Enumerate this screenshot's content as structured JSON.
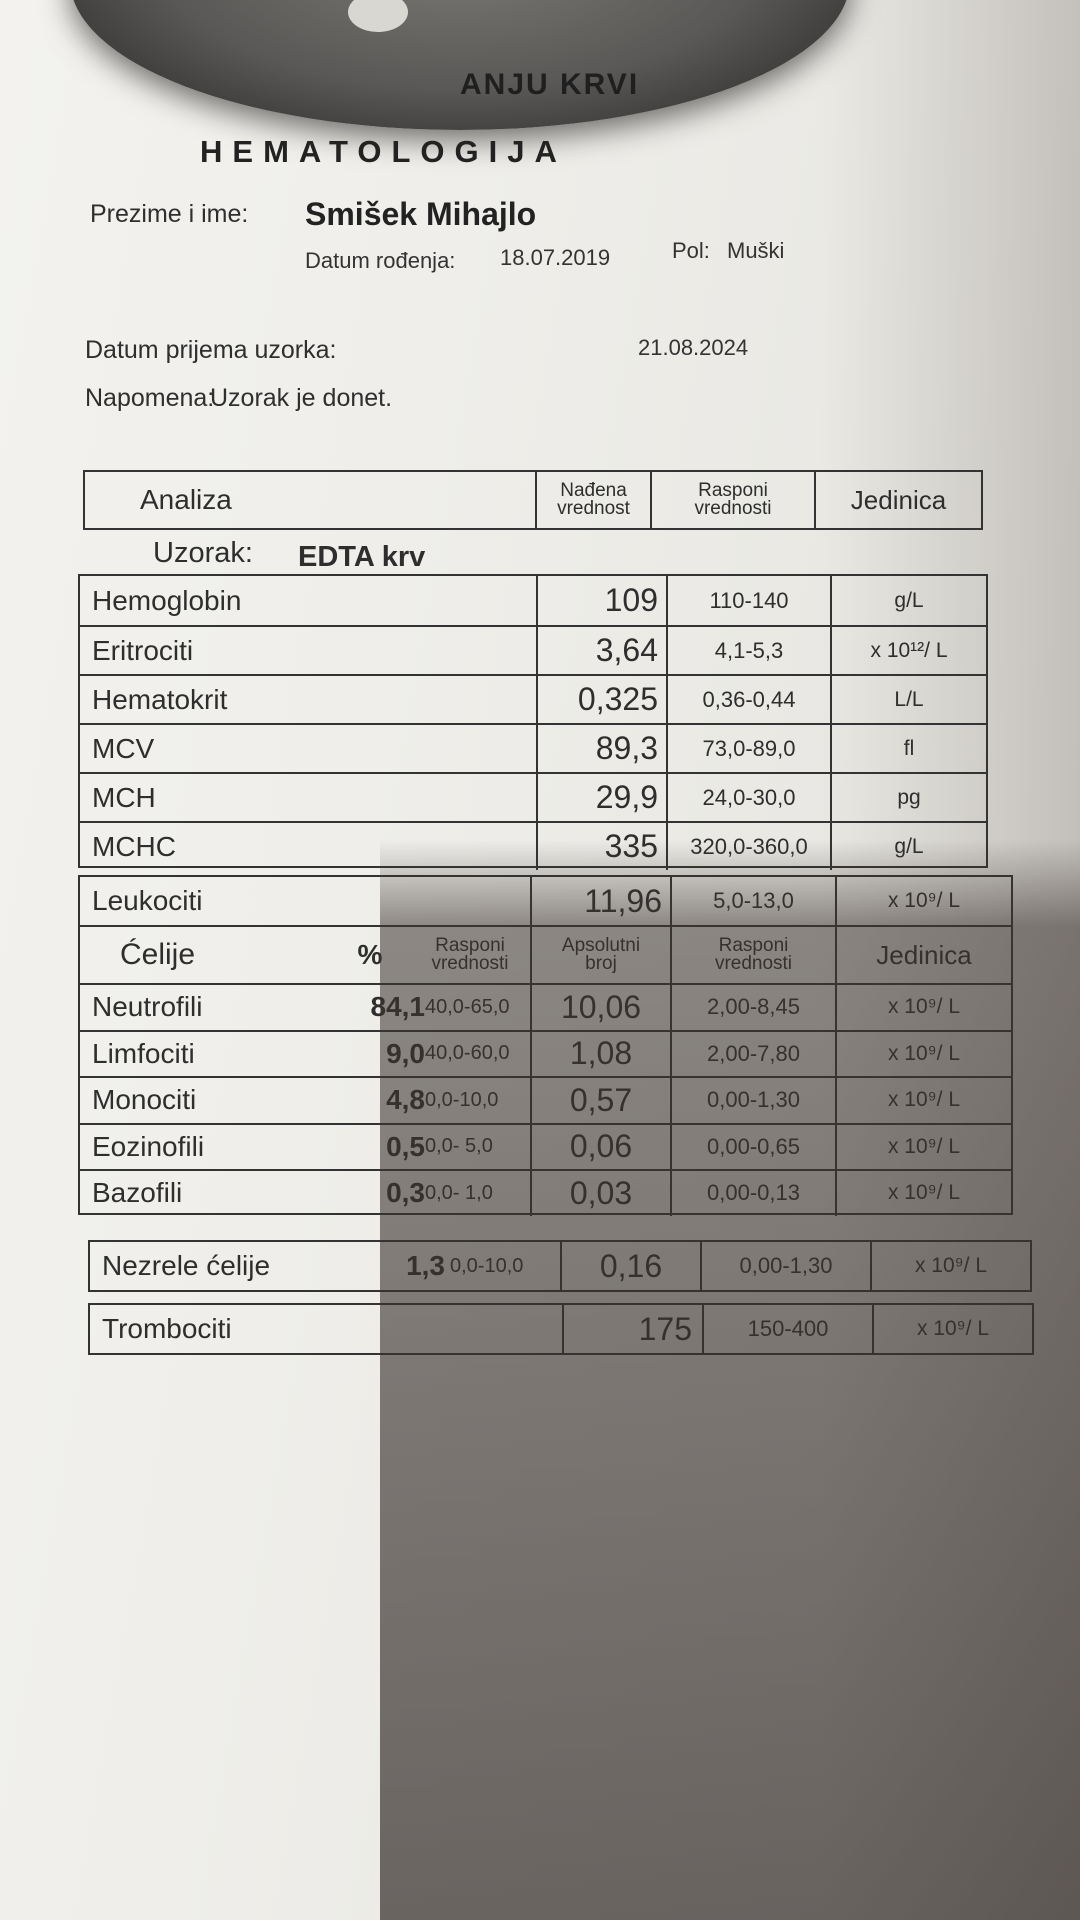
{
  "header": {
    "title_fragment": "ANJU KRVI",
    "subtitle": "HEMATOLOGIJA"
  },
  "patient": {
    "name_label": "Prezime i ime:",
    "name": "Smišek Mihajlo",
    "dob_label": "Datum rođenja:",
    "dob": "18.07.2019",
    "sex_label": "Pol:",
    "sex": "Muški",
    "received_label": "Datum prijema uzorka:",
    "received": "21.08.2024",
    "note_label": "Napomena:",
    "note": "Uzorak je donet."
  },
  "table_header": {
    "analysis": "Analiza",
    "found_1": "Nađena",
    "found_2": "vrednost",
    "range_1": "Rasponi",
    "range_2": "vrednosti",
    "unit": "Jedinica"
  },
  "sample": {
    "label": "Uzorak:",
    "value": "EDTA krv"
  },
  "rbc_rows": [
    {
      "name": "Hemoglobin",
      "value": "109",
      "range": "110-140",
      "unit": "g/L"
    },
    {
      "name": "Eritrociti",
      "value": "3,64",
      "range": "4,1-5,3",
      "unit": "x 10¹²/ L"
    },
    {
      "name": "Hematokrit",
      "value": "0,325",
      "range": "0,36-0,44",
      "unit": "L/L"
    },
    {
      "name": "MCV",
      "value": "89,3",
      "range": "73,0-89,0",
      "unit": "fl"
    },
    {
      "name": "MCH",
      "value": "29,9",
      "range": "24,0-30,0",
      "unit": "pg"
    },
    {
      "name": "MCHC",
      "value": "335",
      "range": "320,0-360,0",
      "unit": "g/L"
    }
  ],
  "leuko": {
    "name": "Leukociti",
    "value": "11,96",
    "range": "5,0-13,0",
    "unit": "x 10⁹/ L",
    "head": {
      "cells": "Ćelije",
      "pct": "%",
      "pct_range_1": "Rasponi",
      "pct_range_2": "vrednosti",
      "abs_1": "Apsolutni",
      "abs_2": "broj",
      "abs_range_1": "Rasponi",
      "abs_range_2": "vrednosti",
      "unit": "Jedinica"
    },
    "rows": [
      {
        "name": "Neutrofili",
        "pct": "84,1",
        "pct_range": "40,0-65,0",
        "abs": "10,06",
        "abs_range": "2,00-8,45",
        "unit": "x 10⁹/ L"
      },
      {
        "name": "Limfociti",
        "pct": "9,0",
        "pct_range": "40,0-60,0",
        "abs": "1,08",
        "abs_range": "2,00-7,80",
        "unit": "x 10⁹/ L"
      },
      {
        "name": "Monociti",
        "pct": "4,8",
        "pct_range": "0,0-10,0",
        "abs": "0,57",
        "abs_range": "0,00-1,30",
        "unit": "x 10⁹/ L"
      },
      {
        "name": "Eozinofili",
        "pct": "0,5",
        "pct_range": "0,0- 5,0",
        "abs": "0,06",
        "abs_range": "0,00-0,65",
        "unit": "x 10⁹/ L"
      },
      {
        "name": "Bazofili",
        "pct": "0,3",
        "pct_range": "0,0- 1,0",
        "abs": "0,03",
        "abs_range": "0,00-0,13",
        "unit": "x 10⁹/ L"
      }
    ]
  },
  "immature": {
    "name": "Nezrele ćelije",
    "pct": "1,3",
    "pct_range": "0,0-10,0",
    "abs": "0,16",
    "abs_range": "0,00-1,30",
    "unit": "x 10⁹/ L"
  },
  "platelets": {
    "name": "Trombociti",
    "value": "175",
    "range": "150-400",
    "unit": "x 10⁹/ L"
  }
}
